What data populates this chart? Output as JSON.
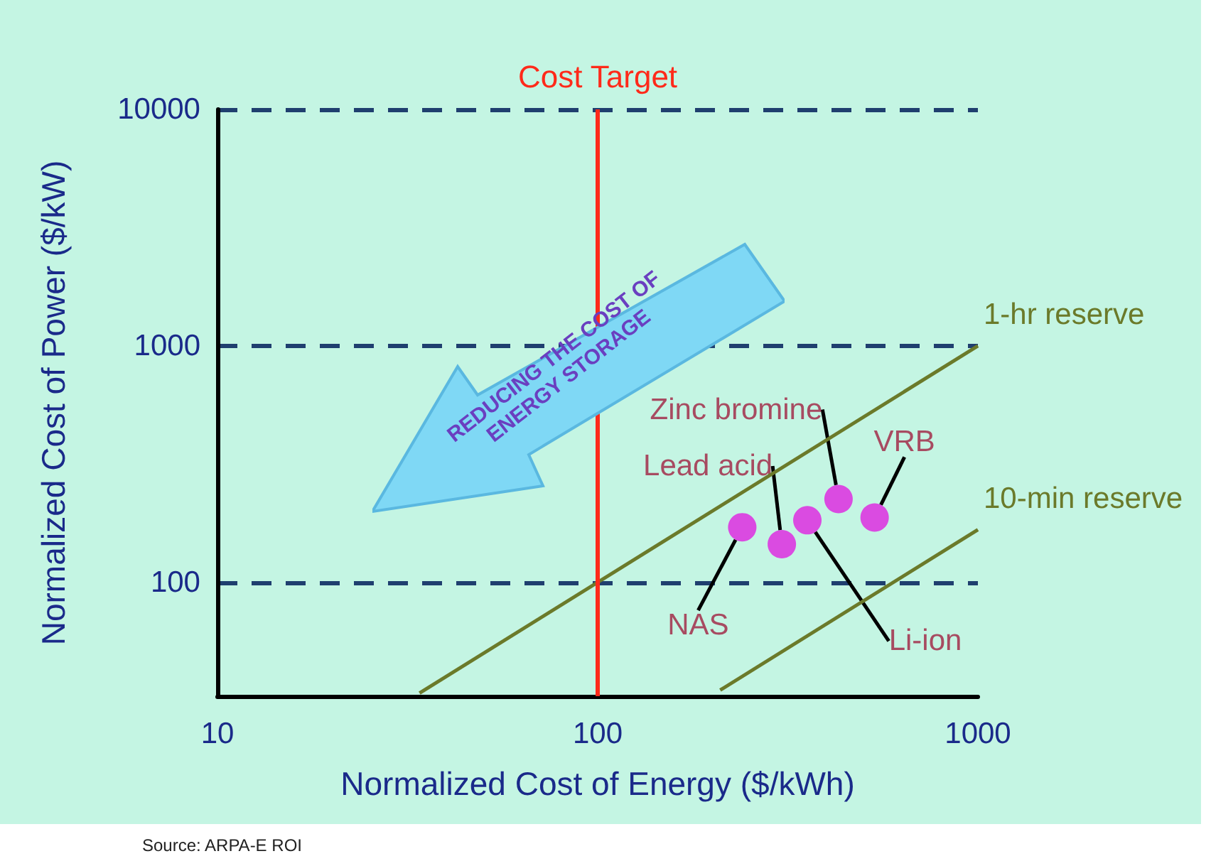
{
  "chart_data": {
    "type": "scatter",
    "xlabel": "Normalized Cost of Energy ($/kWh)",
    "ylabel": "Normalized Cost of Power ($/kW)",
    "log": "xy",
    "xlim": [
      10,
      1000
    ],
    "xticks": [
      10,
      100,
      1000
    ],
    "ylim": [
      33,
      10000
    ],
    "yticks": [
      100,
      1000,
      10000
    ],
    "grid": "y",
    "marker": "circle",
    "series": [
      {
        "name": "NAS",
        "color": "#e020e0",
        "x": [
          240
        ],
        "values": [
          171
        ]
      },
      {
        "name": "Lead acid",
        "color": "#e020e0",
        "x": [
          305
        ],
        "values": [
          145
        ]
      },
      {
        "name": "Li-ion",
        "color": "#e020e0",
        "x": [
          356
        ],
        "values": [
          183
        ]
      },
      {
        "name": "Zinc bromine",
        "color": "#e020e0",
        "x": [
          430
        ],
        "values": [
          225
        ]
      },
      {
        "name": "VRB",
        "color": "#e020e0",
        "x": [
          535
        ],
        "values": [
          188
        ]
      },
      {
        "name": "1-hr reserve",
        "type": "line",
        "marker": "none",
        "color": "#6b7a2a",
        "x": [
          34,
          1000
        ],
        "values": [
          34,
          1000
        ]
      },
      {
        "name": "10-min reserve",
        "type": "line",
        "marker": "none",
        "color": "#6b7a2a",
        "x": [
          210,
          1000
        ],
        "values": [
          35,
          167
        ]
      }
    ],
    "ref_lines": [
      {
        "axis": "x",
        "value": 100,
        "label": "Cost Target",
        "color": "#ff2a1a"
      }
    ],
    "annotations": [
      "REDUCING THE COST OF ENERGY STORAGE",
      "Source:  ARPA-E ROI"
    ]
  }
}
